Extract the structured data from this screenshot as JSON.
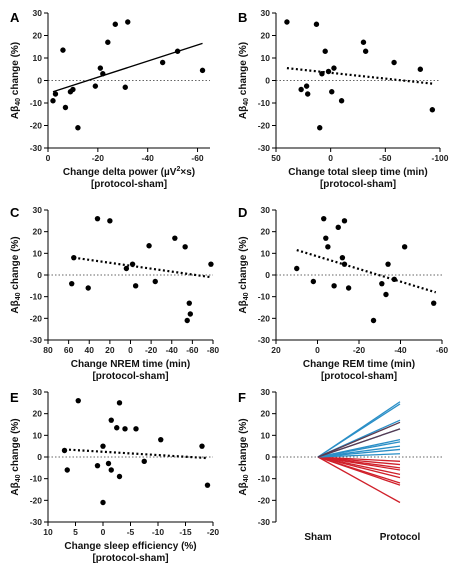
{
  "chart_data": [
    {
      "panel": "A",
      "type": "scatter",
      "xlabel": "Change delta power (µV²×s)",
      "xlabel_sub": "[protocol-sham]",
      "ylabel": "Aβ40 change (%)",
      "xlim": [
        0,
        -65
      ],
      "ylim": [
        -30,
        30
      ],
      "xticks": [
        0,
        -20,
        -40,
        -60
      ],
      "yticks": [
        -30,
        -20,
        -10,
        0,
        10,
        20,
        30
      ],
      "xtick_labels": [
        "0",
        "-20",
        "-40",
        "-60"
      ],
      "trend": {
        "style": "solid",
        "x": [
          -2,
          -62
        ],
        "y": [
          -5,
          16.5
        ]
      },
      "points": [
        {
          "x": -2,
          "y": -9
        },
        {
          "x": -3,
          "y": -6
        },
        {
          "x": -6,
          "y": 13.5
        },
        {
          "x": -7,
          "y": -12
        },
        {
          "x": -9,
          "y": -5
        },
        {
          "x": -10,
          "y": -4
        },
        {
          "x": -12,
          "y": -21
        },
        {
          "x": -19,
          "y": -2.5
        },
        {
          "x": -21,
          "y": 5.5
        },
        {
          "x": -22,
          "y": 3
        },
        {
          "x": -24,
          "y": 17
        },
        {
          "x": -27,
          "y": 25
        },
        {
          "x": -31,
          "y": -3
        },
        {
          "x": -32,
          "y": 26
        },
        {
          "x": -46,
          "y": 8
        },
        {
          "x": -52,
          "y": 13
        },
        {
          "x": -62,
          "y": 4.5
        }
      ]
    },
    {
      "panel": "B",
      "type": "scatter",
      "xlabel": "Change total sleep time (min)",
      "xlabel_sub": "[protocol-sham]",
      "ylabel": "Aβ40 change (%)",
      "xlim": [
        50,
        -100
      ],
      "ylim": [
        -30,
        30
      ],
      "xticks": [
        50,
        0,
        -50,
        -100
      ],
      "yticks": [
        -30,
        -20,
        -10,
        0,
        10,
        20,
        30
      ],
      "xtick_labels": [
        "50",
        "0",
        "-50",
        "-100"
      ],
      "trend": {
        "style": "dotted",
        "x": [
          40,
          -95
        ],
        "y": [
          5.5,
          -1.5
        ]
      },
      "points": [
        {
          "x": 40,
          "y": 26
        },
        {
          "x": 27,
          "y": -4
        },
        {
          "x": 22,
          "y": -2.5
        },
        {
          "x": 21,
          "y": -6
        },
        {
          "x": 13,
          "y": 25
        },
        {
          "x": 10,
          "y": -21
        },
        {
          "x": 8,
          "y": 3
        },
        {
          "x": 5,
          "y": 13
        },
        {
          "x": 2,
          "y": 4
        },
        {
          "x": -1,
          "y": -5
        },
        {
          "x": -3,
          "y": 5.5
        },
        {
          "x": -10,
          "y": -9
        },
        {
          "x": -30,
          "y": 17
        },
        {
          "x": -32,
          "y": 13
        },
        {
          "x": -58,
          "y": 8
        },
        {
          "x": -82,
          "y": 5
        },
        {
          "x": -93,
          "y": -13
        }
      ]
    },
    {
      "panel": "C",
      "type": "scatter",
      "xlabel": "Change NREM time (min)",
      "xlabel_sub": "[protocol-sham]",
      "ylabel": "Aβ40 change (%)",
      "xlim": [
        80,
        -80
      ],
      "ylim": [
        -30,
        30
      ],
      "xticks": [
        80,
        60,
        40,
        20,
        0,
        -20,
        -40,
        -60,
        -80
      ],
      "yticks": [
        -30,
        -20,
        -10,
        0,
        10,
        20,
        30
      ],
      "xtick_labels": [
        "80",
        "60",
        "40",
        "20",
        "0",
        "-20",
        "-40",
        "-60",
        "-80"
      ],
      "trend": {
        "style": "dotted",
        "x": [
          55,
          -78
        ],
        "y": [
          8,
          -1
        ]
      },
      "points": [
        {
          "x": 57,
          "y": -4
        },
        {
          "x": 55,
          "y": 8
        },
        {
          "x": 41,
          "y": -6
        },
        {
          "x": 32,
          "y": 26
        },
        {
          "x": 20,
          "y": 25
        },
        {
          "x": 4,
          "y": 3
        },
        {
          "x": -2,
          "y": 5
        },
        {
          "x": -5,
          "y": -5
        },
        {
          "x": -18,
          "y": 13.5
        },
        {
          "x": -24,
          "y": -3
        },
        {
          "x": -43,
          "y": 17
        },
        {
          "x": -53,
          "y": 13
        },
        {
          "x": -55,
          "y": -21
        },
        {
          "x": -57,
          "y": -13
        },
        {
          "x": -58,
          "y": -18
        },
        {
          "x": -78,
          "y": 5
        }
      ]
    },
    {
      "panel": "D",
      "type": "scatter",
      "xlabel": "Change REM time (min)",
      "xlabel_sub": "[protocol-sham]",
      "ylabel": "Aβ40 change (%)",
      "xlim": [
        20,
        -60
      ],
      "ylim": [
        -30,
        30
      ],
      "xticks": [
        20,
        0,
        -20,
        -40,
        -60
      ],
      "yticks": [
        -30,
        -20,
        -10,
        0,
        10,
        20,
        30
      ],
      "xtick_labels": [
        "20",
        "0",
        "-20",
        "-40",
        "-60"
      ],
      "trend": {
        "style": "dotted",
        "x": [
          10,
          -57
        ],
        "y": [
          11.5,
          -8
        ]
      },
      "points": [
        {
          "x": 10,
          "y": 3
        },
        {
          "x": 2,
          "y": -3
        },
        {
          "x": -3,
          "y": 26
        },
        {
          "x": -4,
          "y": 17
        },
        {
          "x": -5,
          "y": 13
        },
        {
          "x": -8,
          "y": -5
        },
        {
          "x": -10,
          "y": 22
        },
        {
          "x": -12,
          "y": 8
        },
        {
          "x": -13,
          "y": 5
        },
        {
          "x": -13,
          "y": 25
        },
        {
          "x": -15,
          "y": -6
        },
        {
          "x": -27,
          "y": -21
        },
        {
          "x": -31,
          "y": -4
        },
        {
          "x": -33,
          "y": -9
        },
        {
          "x": -34,
          "y": 5
        },
        {
          "x": -37,
          "y": -2
        },
        {
          "x": -42,
          "y": 13
        },
        {
          "x": -56,
          "y": -13
        }
      ]
    },
    {
      "panel": "E",
      "type": "scatter",
      "xlabel": "Change sleep efficiency (%)",
      "xlabel_sub": "[protocol-sham]",
      "ylabel": "Aβ40 change (%)",
      "xlim": [
        10,
        -20
      ],
      "ylim": [
        -30,
        30
      ],
      "xticks": [
        10,
        5,
        0,
        -5,
        -10,
        -15,
        -20
      ],
      "yticks": [
        -30,
        -20,
        -10,
        0,
        10,
        20,
        30
      ],
      "xtick_labels": [
        "10",
        "5",
        "0",
        "-5",
        "-10",
        "-15",
        "-20"
      ],
      "trend": {
        "style": "dotted",
        "x": [
          7,
          -19
        ],
        "y": [
          3.5,
          -0.5
        ]
      },
      "points": [
        {
          "x": 7,
          "y": 3
        },
        {
          "x": 6.5,
          "y": -6
        },
        {
          "x": 4.5,
          "y": 26
        },
        {
          "x": 1,
          "y": -4
        },
        {
          "x": 0,
          "y": 5
        },
        {
          "x": 0,
          "y": -21
        },
        {
          "x": -1,
          "y": -3
        },
        {
          "x": -1.5,
          "y": -6
        },
        {
          "x": -1.5,
          "y": 17
        },
        {
          "x": -2.5,
          "y": 13.5
        },
        {
          "x": -3,
          "y": -9
        },
        {
          "x": -3,
          "y": 25
        },
        {
          "x": -4,
          "y": 13
        },
        {
          "x": -6,
          "y": 13
        },
        {
          "x": -7.5,
          "y": -2
        },
        {
          "x": -10.5,
          "y": 8
        },
        {
          "x": -18,
          "y": 5
        },
        {
          "x": -19,
          "y": -13
        }
      ]
    },
    {
      "panel": "F",
      "type": "line",
      "ylabel": "Aβ40 change (%)",
      "categories": [
        "Sham",
        "Protocol"
      ],
      "ylim": [
        -30,
        30
      ],
      "yticks": [
        -30,
        -20,
        -10,
        0,
        10,
        20,
        30
      ],
      "colors": {
        "increase": "#2a8fc7",
        "decrease": "#d0202a",
        "dark": "#5a3a50"
      },
      "increase_endpoints": [
        25.5,
        24.5,
        17,
        13,
        8,
        7,
        5,
        3.5,
        1.5
      ],
      "dark_endpoints": [
        16,
        13
      ],
      "decrease_endpoints": [
        -2,
        -3.5,
        -5,
        -6,
        -8,
        -9.5,
        -12,
        -13,
        -21
      ]
    }
  ]
}
